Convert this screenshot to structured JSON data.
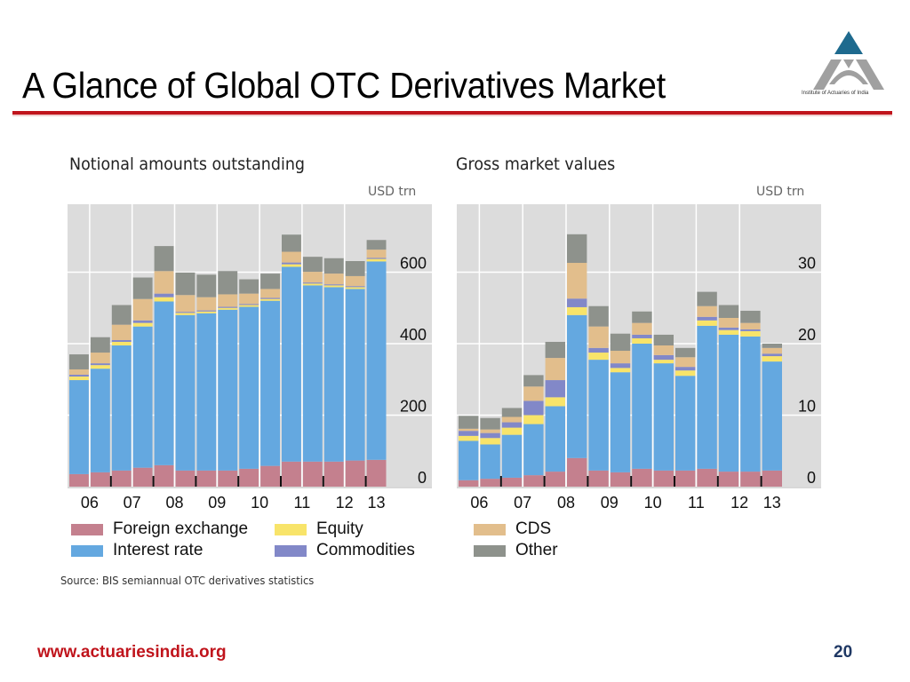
{
  "slide": {
    "title": "A Glance of Global OTC Derivatives Market",
    "logo_caption": "Institute of Actuaries of India",
    "source": "Source: BIS semiannual OTC derivatives statistics",
    "footer_url": "www.actuariesindia.org",
    "page_number": "20"
  },
  "colors": {
    "foreign_exchange": "#c4808e",
    "interest_rate": "#64a8e0",
    "equity": "#f8e46a",
    "commodities": "#8288c8",
    "cds": "#e2be8c",
    "other": "#8e928c",
    "plot_bg": "#dcdcdc",
    "title_rule": "#c0141c",
    "logo_top": "#1e6a8e",
    "logo_bottom": "#a0a0a0"
  },
  "legend": {
    "foreign_exchange": "Foreign exchange",
    "equity": "Equity",
    "interest_rate": "Interest rate",
    "commodities": "Commodities",
    "cds": "CDS",
    "other": "Other"
  },
  "chart_data": [
    {
      "type": "bar",
      "stacked": true,
      "title": "Notional amounts outstanding",
      "ylabel": "USD trn",
      "xlabel": "",
      "categories": [
        "06H1",
        "06H2",
        "07H1",
        "07H2",
        "08H1",
        "08H2",
        "09H1",
        "09H2",
        "10H1",
        "10H2",
        "11H1",
        "11H2",
        "12H1",
        "12H2",
        "13H1"
      ],
      "x_tick_labels": [
        "06",
        "07",
        "08",
        "09",
        "10",
        "11",
        "12",
        "13"
      ],
      "y_ticks": [
        0,
        200,
        400,
        600
      ],
      "ylim": [
        0,
        790
      ],
      "grid": true,
      "axis_side": "right",
      "series": [
        {
          "name": "Foreign exchange",
          "key": "foreign_exchange",
          "values": [
            35,
            40,
            45,
            53,
            60,
            45,
            45,
            45,
            50,
            58,
            70,
            70,
            70,
            73,
            75
          ]
        },
        {
          "name": "Interest rate",
          "key": "interest_rate",
          "values": [
            263,
            290,
            350,
            395,
            458,
            435,
            440,
            450,
            453,
            462,
            545,
            493,
            488,
            480,
            555
          ]
        },
        {
          "name": "Equity",
          "key": "equity",
          "values": [
            10,
            10,
            10,
            10,
            12,
            6,
            5,
            5,
            5,
            5,
            7,
            5,
            5,
            5,
            7
          ]
        },
        {
          "name": "Commodities",
          "key": "commodities",
          "values": [
            5,
            5,
            5,
            7,
            10,
            3,
            3,
            3,
            3,
            3,
            5,
            3,
            3,
            3,
            3
          ]
        },
        {
          "name": "CDS",
          "key": "cds",
          "values": [
            15,
            30,
            43,
            60,
            63,
            47,
            37,
            35,
            29,
            25,
            30,
            30,
            30,
            28,
            23
          ]
        },
        {
          "name": "Other",
          "key": "other",
          "values": [
            42,
            43,
            55,
            60,
            70,
            63,
            63,
            65,
            40,
            43,
            48,
            42,
            43,
            42,
            27
          ]
        }
      ]
    },
    {
      "type": "bar",
      "stacked": true,
      "title": "Gross market values",
      "ylabel": "USD trn",
      "xlabel": "",
      "categories": [
        "06H1",
        "06H2",
        "07H1",
        "07H2",
        "08H1",
        "08H2",
        "09H1",
        "09H2",
        "10H1",
        "10H2",
        "11H1",
        "11H2",
        "12H1",
        "12H2",
        "13H1"
      ],
      "x_tick_labels": [
        "06",
        "07",
        "08",
        "09",
        "10",
        "11",
        "12",
        "13"
      ],
      "y_ticks": [
        0,
        10,
        20,
        30
      ],
      "ylim": [
        0,
        39.5
      ],
      "grid": true,
      "axis_side": "right",
      "series": [
        {
          "name": "Foreign exchange",
          "key": "foreign_exchange",
          "values": [
            0.9,
            1.1,
            1.25,
            1.6,
            2.1,
            4.0,
            2.25,
            2.0,
            2.5,
            2.25,
            2.25,
            2.5,
            2.1,
            2.1,
            2.25
          ]
        },
        {
          "name": "Interest rate",
          "key": "interest_rate",
          "values": [
            5.5,
            4.8,
            6.0,
            7.15,
            9.15,
            20.0,
            15.5,
            14.0,
            17.5,
            15.0,
            13.25,
            20.0,
            19.15,
            18.9,
            15.25
          ]
        },
        {
          "name": "Equity",
          "key": "equity",
          "values": [
            0.7,
            0.9,
            1.0,
            1.25,
            1.25,
            1.1,
            1.0,
            0.6,
            0.75,
            0.5,
            0.75,
            0.75,
            0.65,
            0.75,
            0.75
          ]
        },
        {
          "name": "Commodities",
          "key": "commodities",
          "values": [
            0.7,
            0.7,
            0.75,
            2.0,
            2.4,
            1.2,
            0.65,
            0.65,
            0.5,
            0.65,
            0.5,
            0.5,
            0.35,
            0.25,
            0.35
          ]
        },
        {
          "name": "CDS",
          "key": "cds",
          "values": [
            0.3,
            0.5,
            0.75,
            2.0,
            3.1,
            5.0,
            3.0,
            1.75,
            1.65,
            1.35,
            1.35,
            1.5,
            1.35,
            0.9,
            0.8
          ]
        },
        {
          "name": "Other",
          "key": "other",
          "values": [
            1.8,
            1.6,
            1.25,
            1.6,
            2.25,
            4.0,
            2.85,
            2.4,
            1.6,
            1.5,
            1.3,
            2.0,
            1.8,
            1.7,
            0.6
          ]
        }
      ]
    }
  ]
}
